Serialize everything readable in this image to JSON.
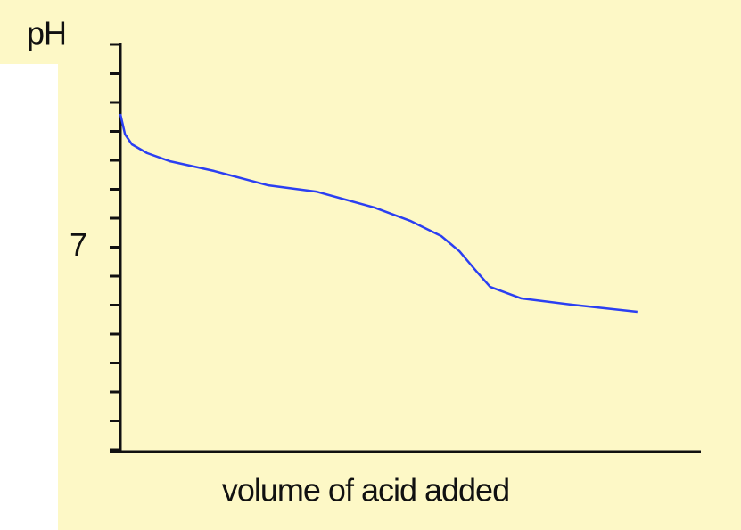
{
  "chart_data": {
    "type": "line",
    "ylabel": "pH",
    "xlabel": "volume of acid added",
    "x": [
      0,
      0.8,
      2,
      4.6,
      8.5,
      16.2,
      25.4,
      33.8,
      43.8,
      50,
      55.4,
      58.5,
      61.5,
      63.8,
      69.2,
      77.7,
      89.2
    ],
    "series": [
      {
        "color": "#2b3ff2",
        "values": [
          11.6,
          10.9,
          10.55,
          10.25,
          9.97,
          9.63,
          9.14,
          8.92,
          8.37,
          7.91,
          7.38,
          6.86,
          6.15,
          5.63,
          5.23,
          5.02,
          4.77
        ]
      }
    ],
    "xlim": [
      0,
      100
    ],
    "ylim": [
      0,
      14
    ],
    "yticks": [
      7
    ],
    "yminor_ticks": [
      0,
      1,
      2,
      3,
      4,
      5,
      6,
      7,
      8,
      9,
      10,
      11,
      12,
      13,
      14
    ]
  }
}
